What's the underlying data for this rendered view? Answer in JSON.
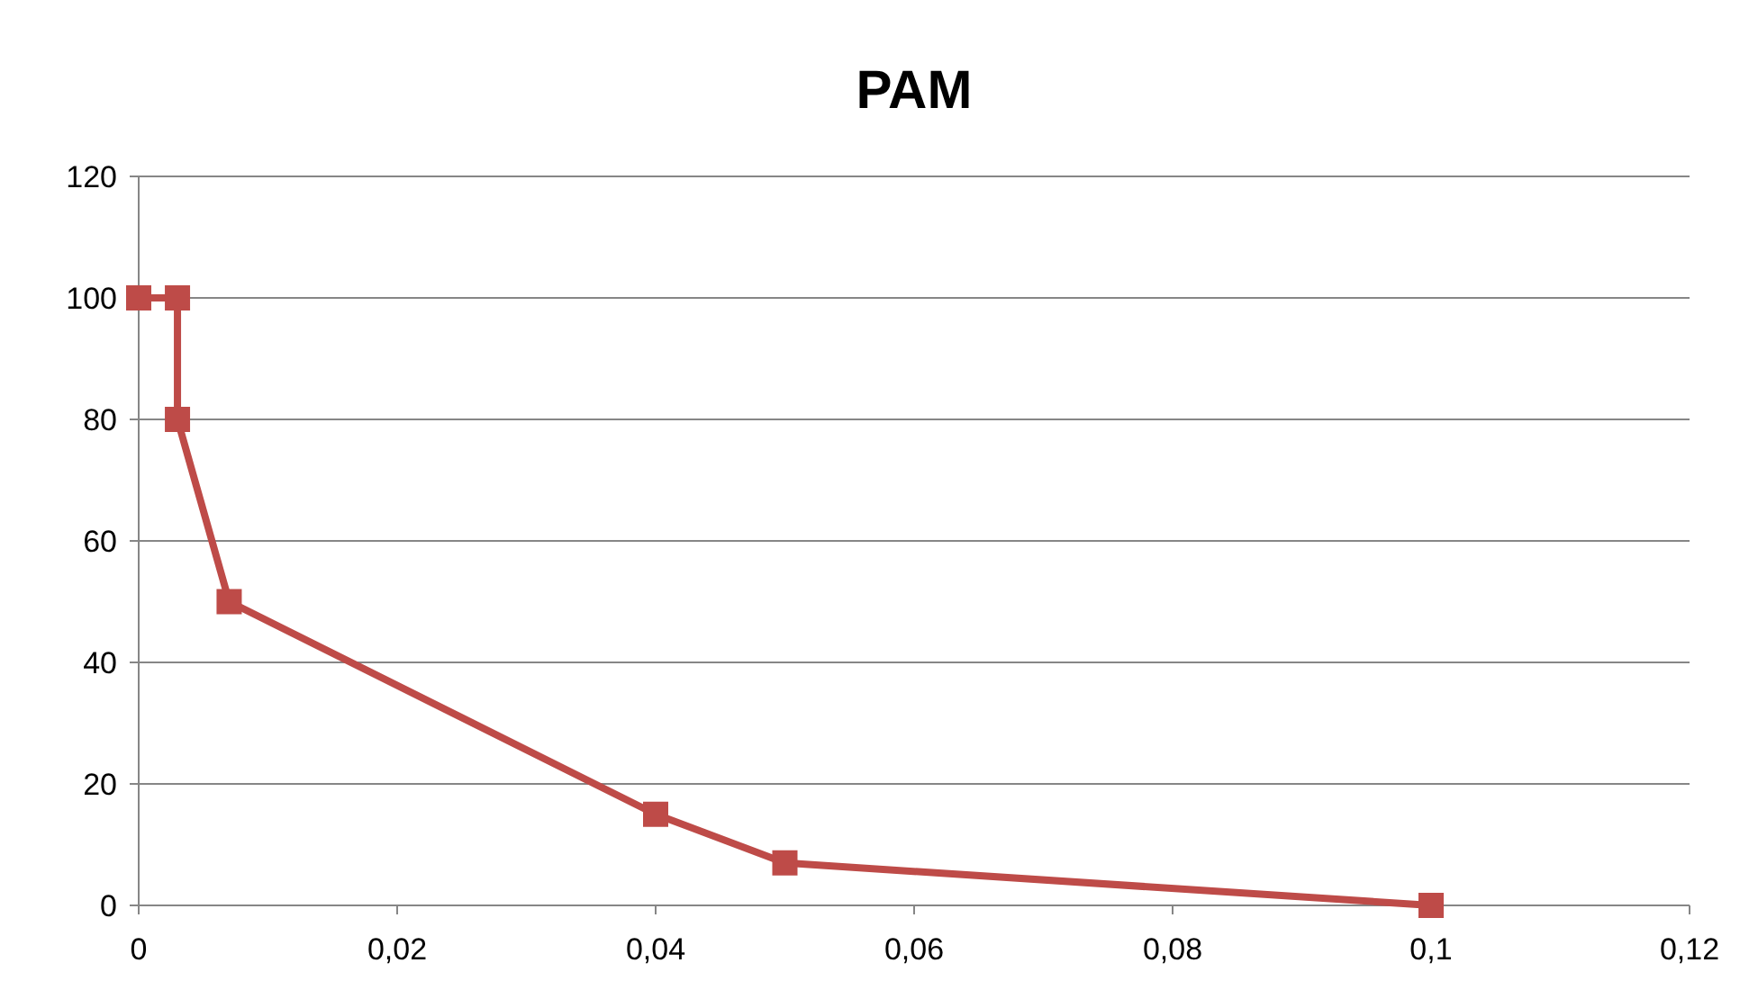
{
  "chart_data": {
    "type": "line",
    "title": "PAM",
    "x": [
      0,
      0.003,
      0.003,
      0.007,
      0.04,
      0.05,
      0.1
    ],
    "series": [
      {
        "color": "#be4b48",
        "values": [
          100,
          100,
          80,
          50,
          15,
          7,
          0
        ]
      }
    ],
    "xlim": [
      0,
      0.12
    ],
    "xticks": [
      0,
      {
        "value": 0.02,
        "label": "0,02"
      },
      {
        "value": 0.04,
        "label": "0,04"
      },
      {
        "value": 0.06,
        "label": "0,06"
      },
      {
        "value": 0.08,
        "label": "0,08"
      },
      {
        "value": 0.1,
        "label": "0,1"
      },
      {
        "value": 0.12,
        "label": "0,12"
      }
    ],
    "ylim": [
      0,
      120
    ],
    "yticks": [
      0,
      20,
      40,
      60,
      80,
      100,
      120
    ],
    "grid": "y",
    "marker": "square",
    "line_style": "solid"
  }
}
